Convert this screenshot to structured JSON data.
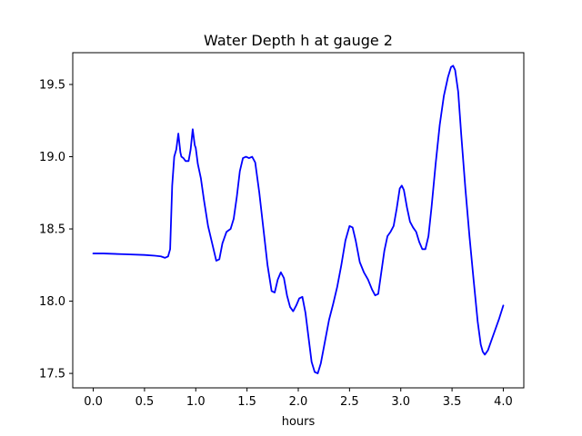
{
  "chart_data": {
    "type": "line",
    "title": "Water Depth h at gauge 2",
    "xlabel": "hours",
    "ylabel": "",
    "xlim": [
      -0.2,
      4.2
    ],
    "ylim": [
      17.4,
      19.72
    ],
    "grid": false,
    "legend": "none",
    "x_ticks": [
      0.0,
      0.5,
      1.0,
      1.5,
      2.0,
      2.5,
      3.0,
      3.5,
      4.0
    ],
    "x_tick_labels": [
      "0.0",
      "0.5",
      "1.0",
      "1.5",
      "2.0",
      "2.5",
      "3.0",
      "3.5",
      "4.0"
    ],
    "y_ticks": [
      17.5,
      18.0,
      18.5,
      19.0,
      19.5
    ],
    "y_tick_labels": [
      "17.5",
      "18.0",
      "18.5",
      "19.0",
      "19.5"
    ],
    "series": [
      {
        "color": "#0000ff",
        "x": [
          0.0,
          0.1,
          0.3,
          0.5,
          0.6,
          0.66,
          0.7,
          0.73,
          0.75,
          0.77,
          0.79,
          0.81,
          0.83,
          0.85,
          0.86,
          0.88,
          0.9,
          0.93,
          0.95,
          0.97,
          0.99,
          1.0,
          1.02,
          1.05,
          1.08,
          1.12,
          1.16,
          1.2,
          1.23,
          1.26,
          1.3,
          1.34,
          1.37,
          1.4,
          1.43,
          1.46,
          1.49,
          1.52,
          1.55,
          1.58,
          1.62,
          1.66,
          1.7,
          1.74,
          1.77,
          1.8,
          1.83,
          1.86,
          1.89,
          1.92,
          1.95,
          1.98,
          2.01,
          2.04,
          2.07,
          2.1,
          2.13,
          2.16,
          2.19,
          2.22,
          2.26,
          2.3,
          2.34,
          2.38,
          2.42,
          2.46,
          2.5,
          2.53,
          2.56,
          2.6,
          2.64,
          2.68,
          2.72,
          2.75,
          2.78,
          2.81,
          2.84,
          2.87,
          2.9,
          2.93,
          2.96,
          2.99,
          3.01,
          3.03,
          3.06,
          3.09,
          3.12,
          3.15,
          3.18,
          3.21,
          3.24,
          3.27,
          3.3,
          3.34,
          3.38,
          3.42,
          3.46,
          3.49,
          3.51,
          3.53,
          3.56,
          3.59,
          3.63,
          3.67,
          3.71,
          3.75,
          3.78,
          3.8,
          3.82,
          3.85,
          3.88,
          3.92,
          3.96,
          4.0
        ],
        "values": [
          18.33,
          18.33,
          18.325,
          18.32,
          18.315,
          18.31,
          18.3,
          18.31,
          18.36,
          18.8,
          19.0,
          19.05,
          19.16,
          19.03,
          19.0,
          18.99,
          18.97,
          18.97,
          19.05,
          19.19,
          19.08,
          19.06,
          18.95,
          18.85,
          18.7,
          18.52,
          18.4,
          18.28,
          18.29,
          18.4,
          18.48,
          18.5,
          18.57,
          18.72,
          18.9,
          18.99,
          19.0,
          18.99,
          19.0,
          18.96,
          18.75,
          18.5,
          18.25,
          18.07,
          18.06,
          18.15,
          18.2,
          18.16,
          18.04,
          17.96,
          17.93,
          17.97,
          18.02,
          18.03,
          17.92,
          17.75,
          17.58,
          17.51,
          17.5,
          17.57,
          17.72,
          17.87,
          17.98,
          18.1,
          18.25,
          18.42,
          18.52,
          18.51,
          18.42,
          18.27,
          18.2,
          18.15,
          18.08,
          18.04,
          18.05,
          18.2,
          18.35,
          18.45,
          18.48,
          18.52,
          18.64,
          18.78,
          18.8,
          18.77,
          18.65,
          18.55,
          18.51,
          18.48,
          18.41,
          18.36,
          18.36,
          18.45,
          18.65,
          18.95,
          19.22,
          19.42,
          19.55,
          19.62,
          19.63,
          19.6,
          19.45,
          19.15,
          18.78,
          18.45,
          18.15,
          17.86,
          17.7,
          17.65,
          17.63,
          17.66,
          17.72,
          17.8,
          17.88,
          17.97
        ]
      }
    ]
  }
}
